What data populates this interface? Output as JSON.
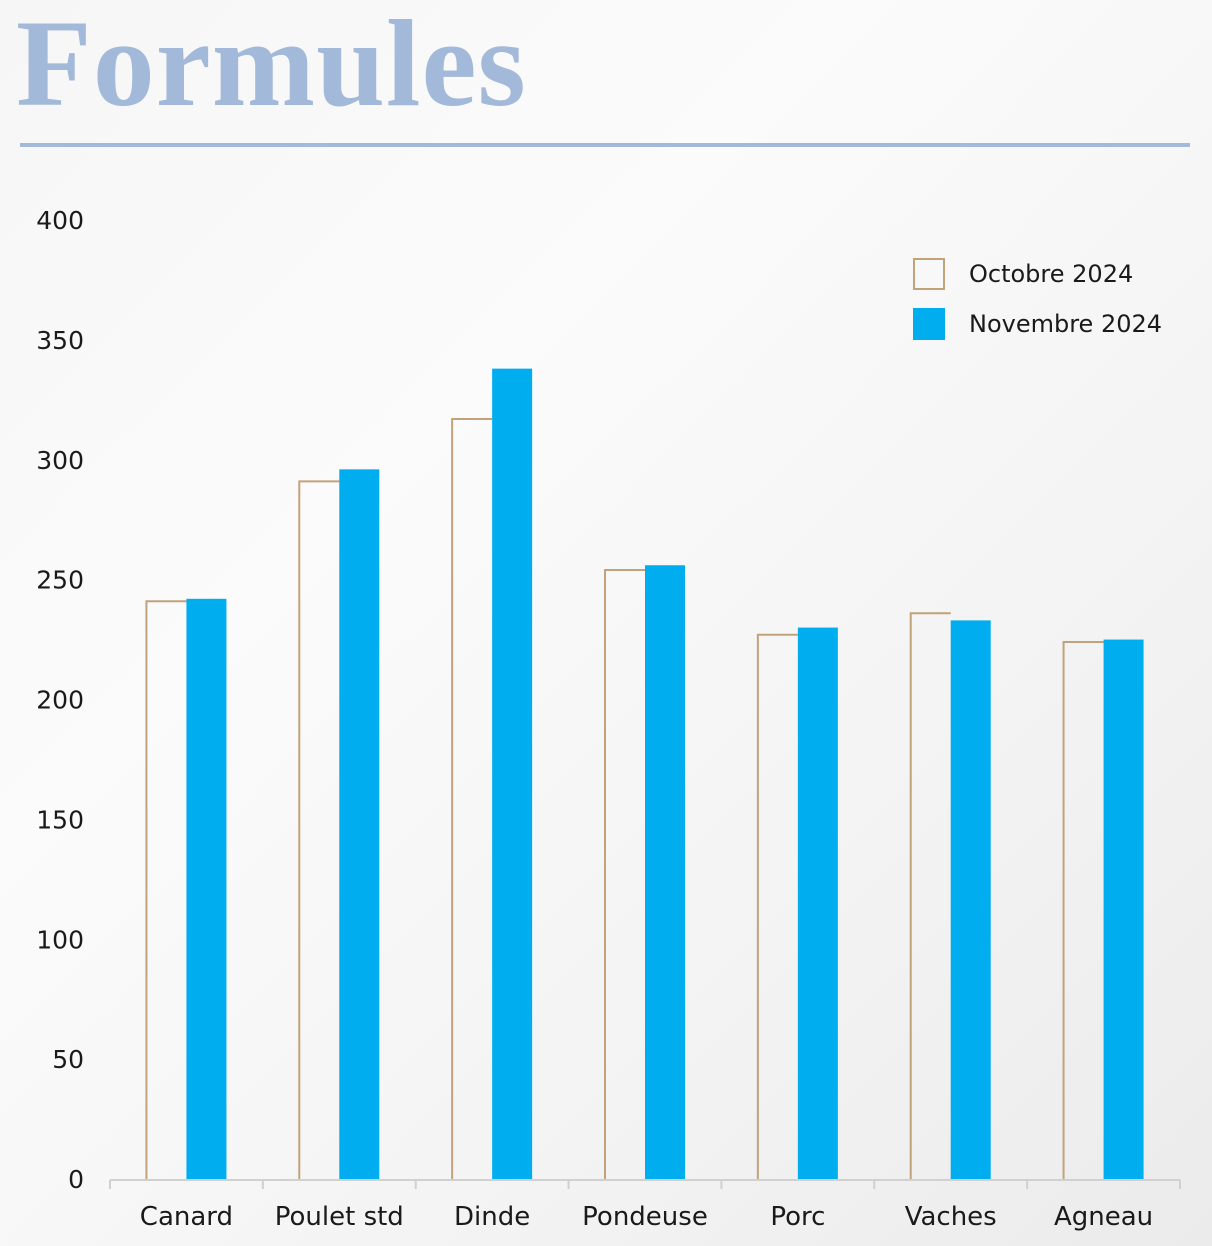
{
  "title": "Formules",
  "colors": {
    "title": "#a3b9d9",
    "series_oct": "#c2a27a",
    "series_nov": "#00aeef",
    "axis": "#d0d0d0"
  },
  "legend": [
    {
      "label": "Octobre 2024",
      "style": "outline",
      "color": "#c2a27a"
    },
    {
      "label": "Novembre 2024",
      "style": "filled",
      "color": "#00aeef"
    }
  ],
  "chart_data": {
    "type": "bar",
    "title": "",
    "xlabel": "",
    "ylabel": "",
    "ylim": [
      0,
      400
    ],
    "yticks": [
      0,
      50,
      100,
      150,
      200,
      250,
      300,
      350,
      400
    ],
    "grid": false,
    "legend_position": "top-right",
    "categories": [
      "Canard",
      "Poulet std",
      "Dinde",
      "Pondeuse",
      "Porc",
      "Vaches",
      "Agneau"
    ],
    "series": [
      {
        "name": "Octobre 2024",
        "values": [
          241,
          291,
          317,
          254,
          227,
          236,
          224
        ]
      },
      {
        "name": "Novembre 2024",
        "values": [
          242,
          296,
          338,
          256,
          230,
          233,
          225
        ]
      }
    ]
  }
}
